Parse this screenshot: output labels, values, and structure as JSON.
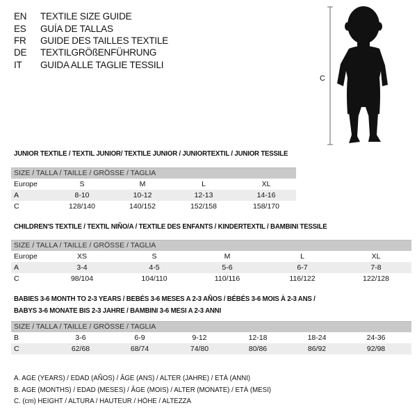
{
  "languages": [
    {
      "code": "EN",
      "text": "TEXTILE SIZE GUIDE"
    },
    {
      "code": "ES",
      "text": "GUÍA DE TALLAS"
    },
    {
      "code": "FR",
      "text": "GUIDE DES TAILLES TEXTILE"
    },
    {
      "code": "DE",
      "text": "TEXTILGRÖßENFÜHRUNG"
    },
    {
      "code": "IT",
      "text": "GUIDA ALLE TAGLIE TESSILI"
    }
  ],
  "figure": {
    "measure_label": "C"
  },
  "tables": [
    {
      "title": "JUNIOR TEXTILE / TEXTIL JUNIOR/ TEXTILE JUNIOR / JUNIORTEXTIL / JUNIOR TESSILE",
      "header": "SIZE / TALLA / TAILLE / GRÖSSE / TAGLIA",
      "rows": [
        {
          "label": "Europe",
          "cells": [
            "S",
            "M",
            "L",
            "XL"
          ]
        },
        {
          "label": "A",
          "cells": [
            "8-10",
            "10-12",
            "12-13",
            "14-16"
          ]
        },
        {
          "label": "C",
          "cells": [
            "128/140",
            "140/152",
            "152/158",
            "158/170"
          ]
        }
      ]
    },
    {
      "title": "CHILDREN'S TEXTILE / TEXTIL NIÑO/A / TEXTILE DES ENFANTS / KINDERTEXTIL / BAMBINI TESSILE",
      "header": "SIZE / TALLA / TAILLE / GRÖSSE / TAGLIA",
      "rows": [
        {
          "label": "Europe",
          "cells": [
            "XS",
            "S",
            "M",
            "L",
            "XL"
          ]
        },
        {
          "label": "A",
          "cells": [
            "3-4",
            "4-5",
            "5-6",
            "6-7",
            "7-8"
          ]
        },
        {
          "label": "C",
          "cells": [
            "98/104",
            "104/110",
            "110/116",
            "116/122",
            "122/128"
          ]
        }
      ]
    },
    {
      "title": "BABIES 3-6 MONTH TO 2-3 YEARS / BEBÉS 3-6 MESES A 2-3 AÑOS / BÉBÉS 3-6 MOIS À 2-3 ANS /",
      "title2": "BABYS 3-6 MONATE BIS 2-3 JAHRE / BAMBINI 3-6 MESI A 2-3 ANNI",
      "header": "SIZE / TALLA / TAILLE / GRÖSSE / TAGLIA",
      "rows": [
        {
          "label": "B",
          "cells": [
            "3-6",
            "6-9",
            "9-12",
            "12-18",
            "18-24",
            "24-36"
          ]
        },
        {
          "label": "C",
          "cells": [
            "62/68",
            "68/74",
            "74/80",
            "80/86",
            "86/92",
            "92/98"
          ]
        }
      ]
    }
  ],
  "legend": [
    "A. AGE (YEARS) / EDAD (AÑOS) / ÂGE (ANS) / ALTER (JAHRE) / ETÀ (ANNI)",
    "B. AGE (MONTHS) / EDAD (MESES) / ÂGE (MOIS) / ALTER (MONATE) / ETÀ (MESI)",
    "C. (cm) HEIGHT / ALTURA / HAUTEUR / HÖHE / ALTEZZA"
  ]
}
